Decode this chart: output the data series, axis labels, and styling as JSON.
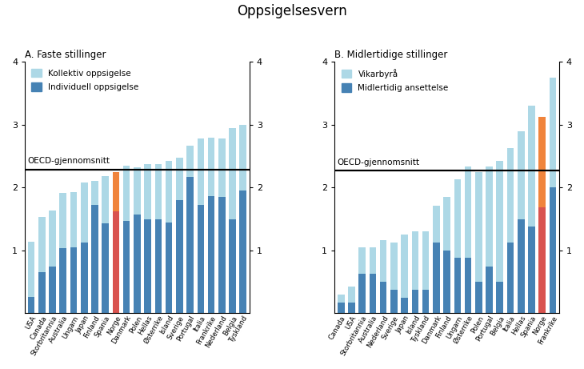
{
  "title": "Oppsigelsesvern",
  "panel_a_title": "A. Faste stillinger",
  "panel_b_title": "B. Midlertidige stillinger",
  "oecd_label": "OECD-gjennomsnitt",
  "panel_a_legend": [
    "Kollektiv oppsigelse",
    "Individuell oppsigelse"
  ],
  "panel_b_legend": [
    "Vikarbyrå",
    "Midlertidig ansettelse"
  ],
  "oecd_avg_a": 2.29,
  "oecd_avg_b": 2.27,
  "panel_a": {
    "countries": [
      "USA",
      "Canada",
      "Storbritannia",
      "Australia",
      "Ungarn",
      "Japan",
      "Finland",
      "Spania",
      "Norge",
      "Danmark",
      "Polen",
      "Hellas",
      "Østerrike",
      "Island",
      "Sverige",
      "Portugal",
      "Italia",
      "Frankrike",
      "Nederland",
      "Belgia",
      "Tyskland"
    ],
    "individual": [
      0.26,
      0.65,
      0.75,
      1.04,
      1.05,
      1.13,
      1.73,
      1.43,
      1.62,
      1.47,
      1.57,
      1.5,
      1.5,
      1.45,
      1.8,
      2.17,
      1.73,
      1.87,
      1.85,
      1.5,
      1.96
    ],
    "collective": [
      0.88,
      0.88,
      0.88,
      0.88,
      0.88,
      0.95,
      0.38,
      0.75,
      0.63,
      0.88,
      0.75,
      0.88,
      0.88,
      0.98,
      0.68,
      0.5,
      1.05,
      0.93,
      0.93,
      1.45,
      1.04
    ],
    "highlight": [
      false,
      false,
      false,
      false,
      false,
      false,
      false,
      false,
      true,
      false,
      false,
      false,
      false,
      false,
      false,
      false,
      false,
      false,
      false,
      false,
      false
    ]
  },
  "panel_b": {
    "countries": [
      "Canada",
      "USA",
      "Storbritannia",
      "Australia",
      "Nederland",
      "Sverige",
      "Japan",
      "Island",
      "Tyskland",
      "Danmark",
      "Finland",
      "Ungarn",
      "Østerrike",
      "Polen",
      "Portugal",
      "Belgia",
      "Italia",
      "Hellas",
      "Spania",
      "Norge",
      "Frankrike"
    ],
    "individual": [
      0.17,
      0.17,
      0.63,
      0.63,
      0.5,
      0.38,
      0.25,
      0.38,
      0.38,
      1.13,
      1.0,
      0.88,
      0.88,
      0.5,
      0.75,
      0.5,
      1.13,
      1.5,
      1.38,
      1.69,
      2.0
    ],
    "collective": [
      0.13,
      0.25,
      0.42,
      0.42,
      0.67,
      0.75,
      1.0,
      0.92,
      0.92,
      0.58,
      0.85,
      1.25,
      1.45,
      1.75,
      1.58,
      1.92,
      1.5,
      1.4,
      1.92,
      1.44,
      1.75
    ],
    "highlight": [
      false,
      false,
      false,
      false,
      false,
      false,
      false,
      false,
      false,
      false,
      false,
      false,
      false,
      false,
      false,
      false,
      false,
      false,
      false,
      true,
      false
    ]
  },
  "color_light": "#add8e6",
  "color_dark": "#4682b4",
  "color_highlight_individual": "#d9534f",
  "color_highlight_collective": "#f0843c",
  "background_color": "#ffffff",
  "ylim": [
    0,
    4
  ],
  "yticks": [
    1,
    2,
    3,
    4
  ]
}
